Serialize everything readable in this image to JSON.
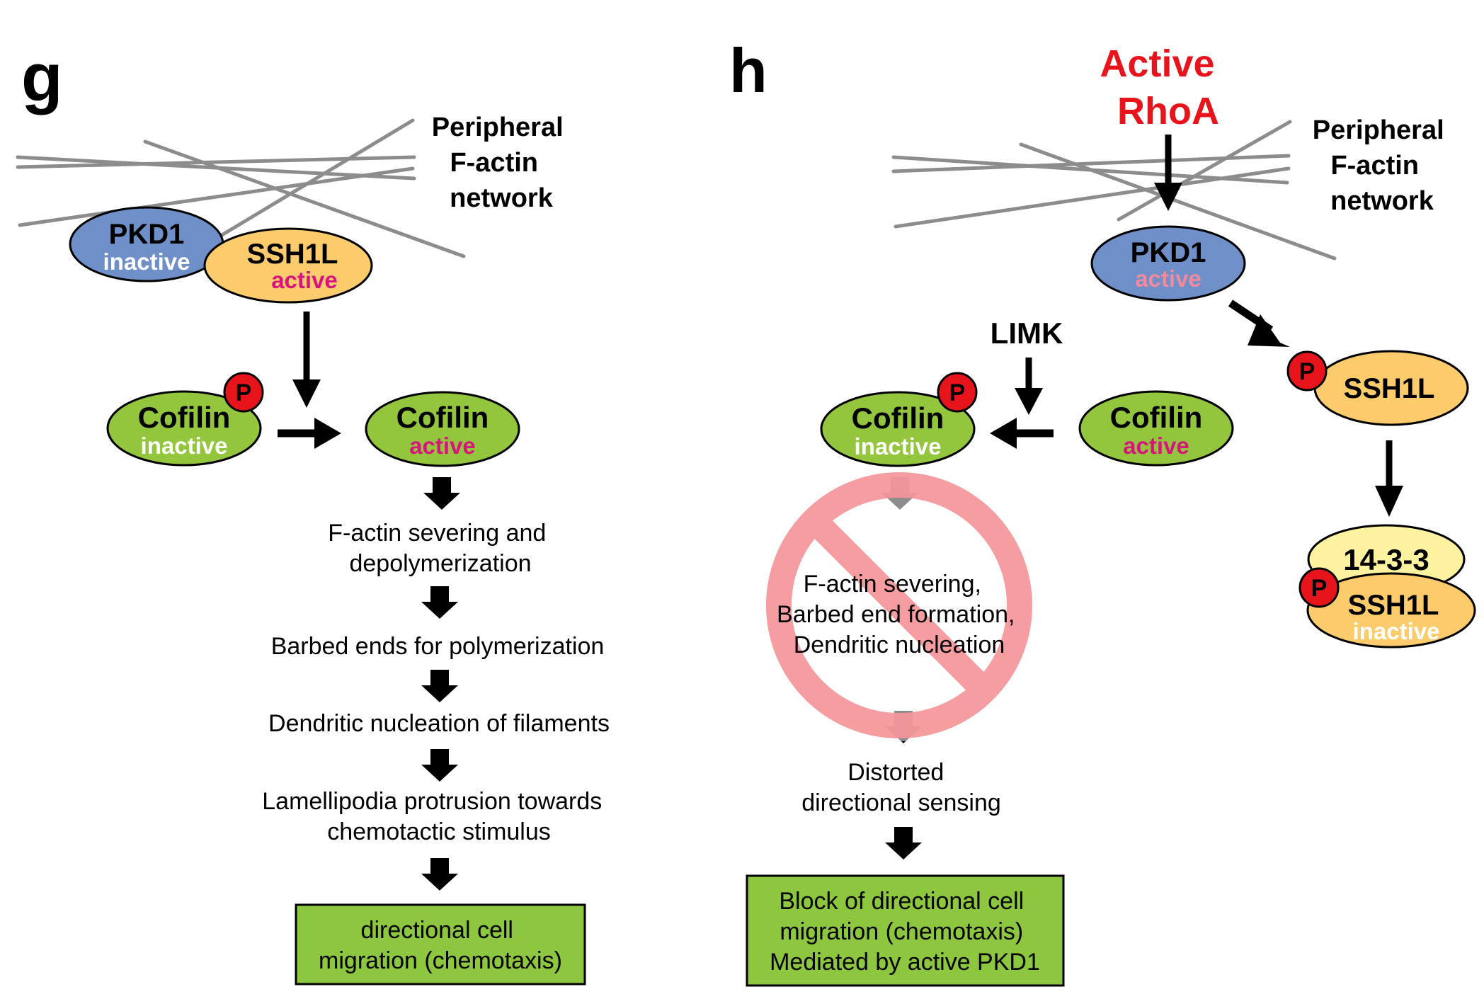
{
  "panel_g": {
    "letter": "g",
    "network_label": [
      "Peripheral",
      "F-actin",
      "network"
    ],
    "pkd1": {
      "name": "PKD1",
      "state": "inactive"
    },
    "ssh1l": {
      "name": "SSH1L",
      "state": "active"
    },
    "phospho": "P",
    "cofilin_left": {
      "name": "Cofilin",
      "state": "inactive"
    },
    "cofilin_right": {
      "name": "Cofilin",
      "state": "active"
    },
    "steps": [
      [
        "F-actin severing and",
        "depolymerization"
      ],
      [
        "Barbed ends for polymerization"
      ],
      [
        "Dendritic nucleation of filaments"
      ],
      [
        "Lamellipodia protrusion towards",
        "chemotactic stimulus"
      ]
    ],
    "result": [
      "directional cell",
      "migration (chemotaxis)"
    ]
  },
  "panel_h": {
    "letter": "h",
    "stimulus": [
      "Active",
      "RhoA"
    ],
    "network_label": [
      "Peripheral",
      "F-actin",
      "network"
    ],
    "pkd1": {
      "name": "PKD1",
      "state": "active"
    },
    "limk": "LIMK",
    "phospho": "P",
    "cofilin_left": {
      "name": "Cofilin",
      "state": "inactive"
    },
    "cofilin_right": {
      "name": "Cofilin",
      "state": "active"
    },
    "ssh1l": {
      "name": "SSH1L"
    },
    "complex": {
      "partner": "14-3-3",
      "name": "SSH1L",
      "state": "inactive"
    },
    "blocked": [
      "F-actin severing,",
      "Barbed end formation,",
      "Dendritic nucleation"
    ],
    "step": [
      "Distorted",
      "directional sensing"
    ],
    "result": [
      "Block of directional cell",
      "migration (chemotaxis)",
      "Mediated by active PKD1"
    ]
  },
  "colors": {
    "pkd1": "#6f8fc9",
    "ssh1l": "#fccb6b",
    "cofilin": "#93c63d",
    "phospho": "#e8141c",
    "complex_partner": "#fdf2a0",
    "result_box": "#8dc63f",
    "stimulus_text": "#e8141c",
    "active_text": "#d8147e",
    "actin": "#8c8c8c"
  }
}
